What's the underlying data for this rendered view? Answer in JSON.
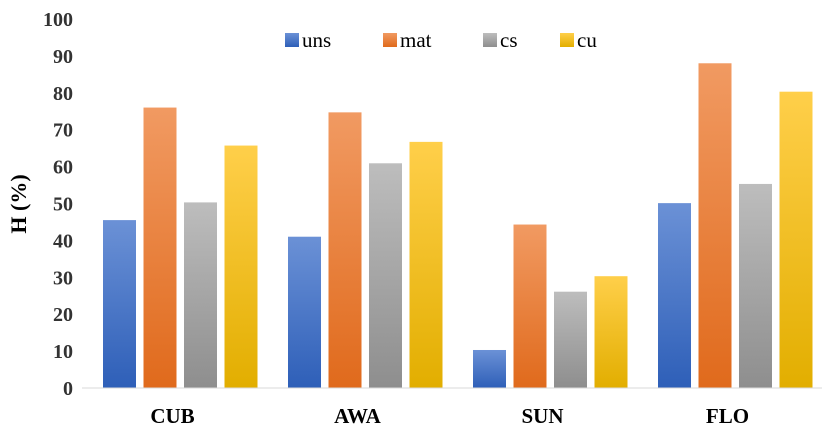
{
  "chart_data": {
    "type": "bar",
    "title": "",
    "xlabel": "",
    "ylabel": "H (%)",
    "ylim": [
      0,
      100
    ],
    "yticks": [
      0,
      10,
      20,
      30,
      40,
      50,
      60,
      70,
      80,
      90,
      100
    ],
    "grid": false,
    "legend_position": "top-center",
    "categories": [
      "CUB",
      "AWA",
      "SUN",
      "FLO"
    ],
    "series": [
      {
        "name": "uns",
        "color": "#4472C4",
        "values": [
          45.5,
          41.0,
          10.3,
          50.1
        ]
      },
      {
        "name": "mat",
        "color": "#ED7D31",
        "values": [
          76.0,
          74.7,
          44.3,
          88.0
        ]
      },
      {
        "name": "cs",
        "color": "#A5A5A5",
        "values": [
          50.3,
          60.9,
          26.1,
          55.3
        ]
      },
      {
        "name": "cu",
        "color": "#FFC000",
        "values": [
          65.7,
          66.7,
          30.3,
          80.3
        ]
      }
    ]
  }
}
